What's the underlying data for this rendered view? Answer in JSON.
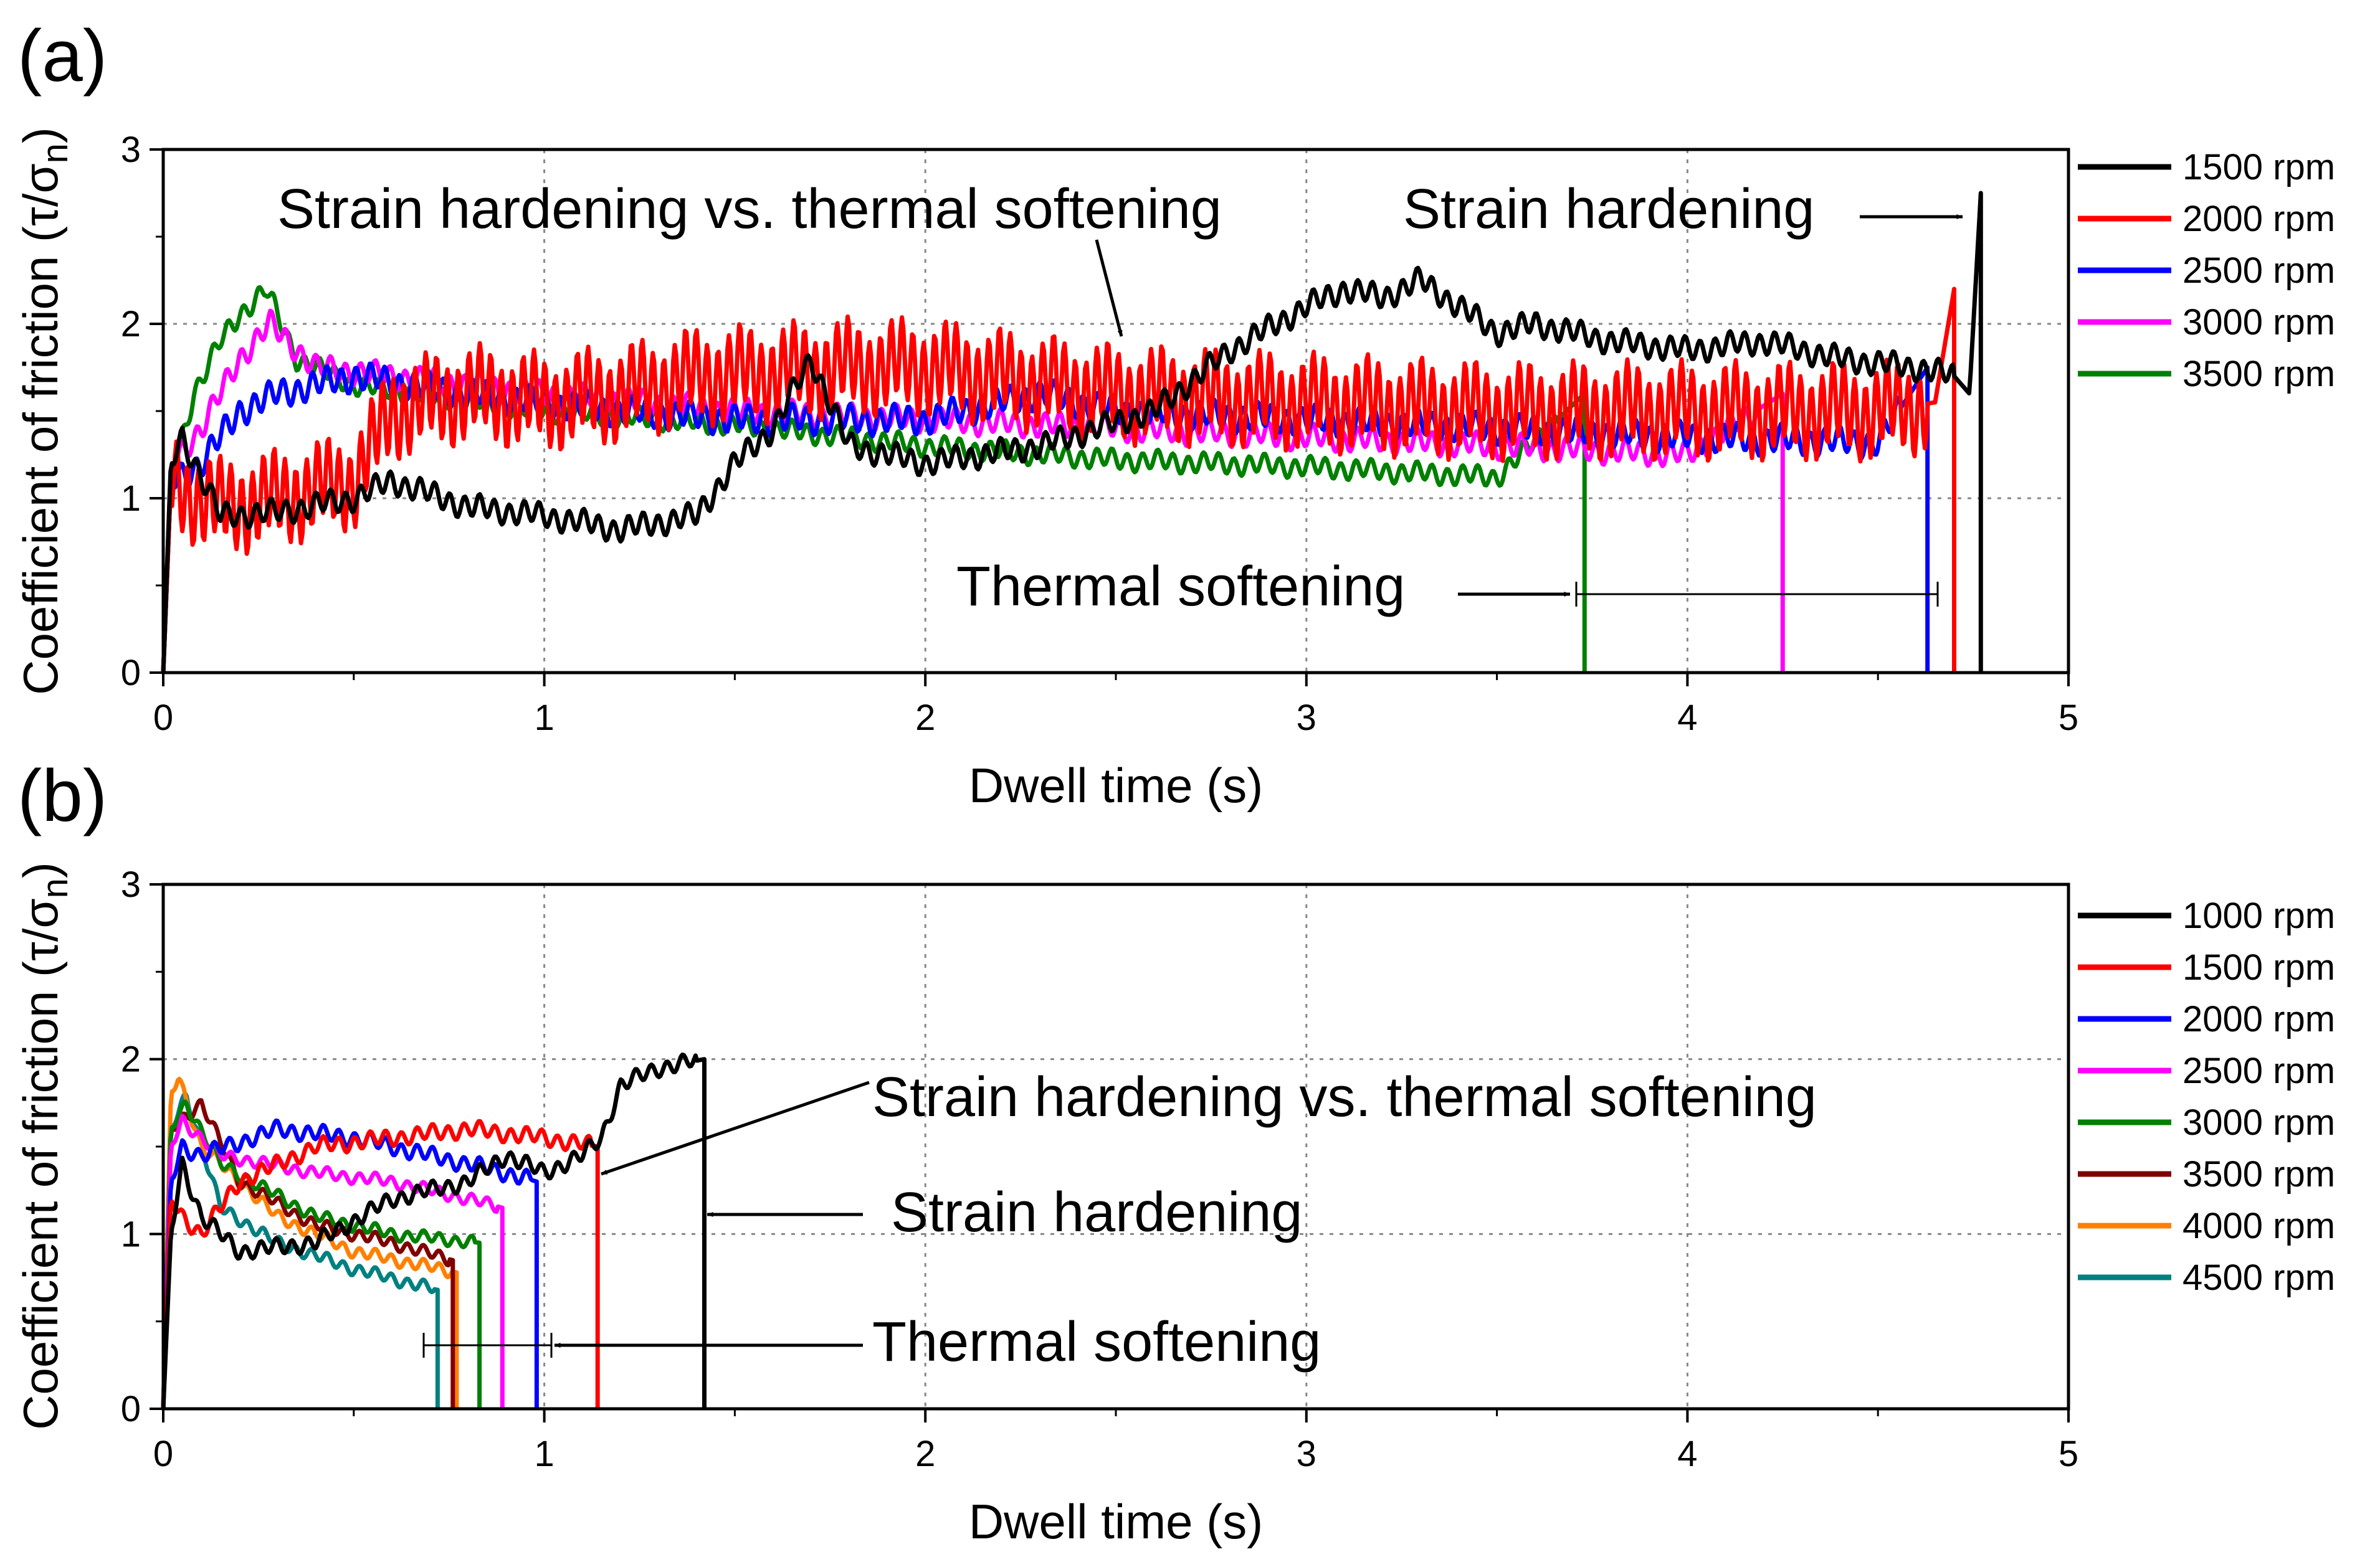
{
  "chart_data": [
    {
      "type": "line",
      "panel_label": "(a)",
      "xlabel": "Dwell time (s)",
      "ylabel": "Coefficient of friction (τ/σn)",
      "ylabel_parts": {
        "main": "Coefficient of friction (τ/σ",
        "sub": "n",
        "close": ")"
      },
      "xlim": [
        0,
        5
      ],
      "ylim": [
        0,
        3
      ],
      "xticks": [
        0,
        1,
        2,
        3,
        4,
        5
      ],
      "yticks": [
        0,
        1,
        2,
        3
      ],
      "grid": "dotted at y=1, y=2 and x=1, x=2, x=3, x=4",
      "legend_position": "right",
      "series": [
        {
          "name": "1500 rpm",
          "color": "#000000",
          "end_time": 4.77,
          "x": [
            0,
            0.02,
            0.05,
            0.15,
            0.3,
            0.5,
            0.6,
            0.8,
            1.0,
            1.2,
            1.4,
            1.5,
            1.6,
            1.7,
            1.8,
            2.0,
            2.3,
            2.6,
            2.8,
            3.0,
            3.1,
            3.2,
            3.3,
            3.4,
            3.5,
            3.6,
            3.8,
            4.0,
            4.2,
            4.4,
            4.6,
            4.7,
            4.74,
            4.77
          ],
          "y": [
            0.0,
            1.2,
            1.35,
            0.9,
            0.92,
            1.0,
            1.1,
            0.95,
            0.9,
            0.82,
            0.9,
            1.2,
            1.4,
            1.8,
            1.3,
            1.2,
            1.3,
            1.5,
            1.85,
            2.1,
            2.2,
            2.15,
            2.25,
            2.1,
            1.95,
            2.0,
            1.9,
            1.85,
            1.9,
            1.8,
            1.75,
            1.7,
            1.6,
            2.75
          ],
          "osc_amp": 0.06
        },
        {
          "name": "2000 rpm",
          "color": "#ff0000",
          "end_time": 4.7,
          "x": [
            0,
            0.02,
            0.05,
            0.15,
            0.3,
            0.5,
            0.6,
            0.8,
            1.0,
            1.2,
            1.4,
            1.6,
            1.8,
            2.0,
            2.5,
            3.0,
            3.5,
            4.0,
            4.5,
            4.65,
            4.7
          ],
          "y": [
            0.0,
            1.1,
            1.05,
            0.95,
            1.0,
            1.1,
            1.5,
            1.6,
            1.55,
            1.6,
            1.7,
            1.72,
            1.75,
            1.75,
            1.6,
            1.55,
            1.5,
            1.5,
            1.5,
            1.55,
            2.2
          ],
          "osc_amp": 0.22
        },
        {
          "name": "2500 rpm",
          "color": "#0000ff",
          "end_time": 4.63,
          "x": [
            0,
            0.02,
            0.1,
            0.2,
            0.3,
            0.5,
            0.8,
            1.0,
            1.2,
            1.5,
            2.0,
            2.3,
            2.5,
            3.0,
            3.5,
            4.0,
            4.5,
            4.63
          ],
          "y": [
            0.0,
            1.1,
            1.2,
            1.5,
            1.6,
            1.7,
            1.6,
            1.55,
            1.5,
            1.45,
            1.45,
            1.6,
            1.5,
            1.45,
            1.4,
            1.35,
            1.32,
            1.75
          ],
          "osc_amp": 0.07
        },
        {
          "name": "3000 rpm",
          "color": "#ff00ff",
          "end_time": 4.25,
          "x": [
            0,
            0.02,
            0.1,
            0.2,
            0.28,
            0.4,
            0.6,
            1.0,
            1.5,
            2.0,
            2.5,
            3.0,
            3.5,
            4.0,
            4.25
          ],
          "y": [
            0.0,
            1.2,
            1.4,
            1.8,
            2.0,
            1.75,
            1.7,
            1.6,
            1.5,
            1.45,
            1.4,
            1.35,
            1.3,
            1.25,
            1.6
          ],
          "osc_amp": 0.06
        },
        {
          "name": "3500 rpm",
          "color": "#008000",
          "end_time": 3.73,
          "x": [
            0,
            0.02,
            0.08,
            0.15,
            0.2,
            0.27,
            0.35,
            0.5,
            1.0,
            1.5,
            2.0,
            2.5,
            3.0,
            3.5,
            3.73
          ],
          "y": [
            0.0,
            1.1,
            1.6,
            1.9,
            2.05,
            2.2,
            1.8,
            1.65,
            1.5,
            1.42,
            1.3,
            1.22,
            1.18,
            1.12,
            1.6
          ],
          "osc_amp": 0.05
        }
      ],
      "annotations": [
        "Strain hardening vs. thermal softening",
        "Strain hardening",
        "Thermal softening"
      ]
    },
    {
      "type": "line",
      "panel_label": "(b)",
      "xlabel": "Dwell time  (s)",
      "ylabel": "Coefficient of friction (τ/σn)",
      "ylabel_parts": {
        "main": "Coefficient of friction (τ/σ",
        "sub": "n",
        "close": ")"
      },
      "xlim": [
        0,
        5
      ],
      "ylim": [
        0,
        3
      ],
      "xticks": [
        0,
        1,
        2,
        3,
        4,
        5
      ],
      "yticks": [
        0,
        1,
        2,
        3
      ],
      "grid": "dotted at y=1, y=2 and x=1, x=2, x=3, x=4",
      "legend_position": "right",
      "series": [
        {
          "name": "1000 rpm",
          "color": "#000000",
          "end_time": 1.42,
          "x": [
            0,
            0.02,
            0.05,
            0.1,
            0.2,
            0.4,
            0.6,
            0.8,
            0.9,
            1.0,
            1.1,
            1.15,
            1.2,
            1.3,
            1.42
          ],
          "y": [
            0.0,
            1.0,
            1.4,
            1.1,
            0.9,
            0.95,
            1.2,
            1.3,
            1.45,
            1.35,
            1.45,
            1.55,
            1.85,
            1.95,
            2.0
          ],
          "osc_amp": 0.04
        },
        {
          "name": "1500 rpm",
          "color": "#ff0000",
          "end_time": 1.14,
          "x": [
            0,
            0.02,
            0.05,
            0.1,
            0.2,
            0.4,
            0.6,
            0.8,
            1.0,
            1.14
          ],
          "y": [
            0.0,
            1.2,
            1.1,
            1.0,
            1.3,
            1.5,
            1.55,
            1.6,
            1.55,
            1.5
          ],
          "osc_amp": 0.04
        },
        {
          "name": "2000 rpm",
          "color": "#0000ff",
          "end_time": 0.98,
          "x": [
            0,
            0.02,
            0.05,
            0.1,
            0.3,
            0.5,
            0.7,
            0.9,
            0.98
          ],
          "y": [
            0.0,
            1.3,
            1.5,
            1.45,
            1.6,
            1.55,
            1.45,
            1.35,
            1.3
          ],
          "osc_amp": 0.04
        },
        {
          "name": "2500 rpm",
          "color": "#ff00ff",
          "end_time": 0.89,
          "x": [
            0,
            0.02,
            0.05,
            0.15,
            0.4,
            0.6,
            0.8,
            0.89
          ],
          "y": [
            0.0,
            1.5,
            1.65,
            1.45,
            1.35,
            1.3,
            1.2,
            1.15
          ],
          "osc_amp": 0.03
        },
        {
          "name": "3000 rpm",
          "color": "#008000",
          "end_time": 0.83,
          "x": [
            0,
            0.02,
            0.06,
            0.15,
            0.4,
            0.6,
            0.83
          ],
          "y": [
            0.0,
            1.6,
            1.75,
            1.4,
            1.1,
            1.0,
            0.95
          ],
          "osc_amp": 0.03
        },
        {
          "name": "3500 rpm",
          "color": "#800000",
          "end_time": 0.76,
          "x": [
            0,
            0.02,
            0.1,
            0.2,
            0.4,
            0.6,
            0.76
          ],
          "y": [
            0.0,
            1.6,
            1.75,
            1.3,
            1.05,
            0.95,
            0.85
          ],
          "osc_amp": 0.03
        },
        {
          "name": "4000 rpm",
          "color": "#ff8000",
          "end_time": 0.77,
          "x": [
            0,
            0.02,
            0.04,
            0.1,
            0.3,
            0.5,
            0.77
          ],
          "y": [
            0.0,
            1.8,
            1.9,
            1.5,
            1.1,
            0.9,
            0.78
          ],
          "osc_amp": 0.03
        },
        {
          "name": "4500 rpm",
          "color": "#008080",
          "end_time": 0.72,
          "x": [
            0,
            0.02,
            0.06,
            0.15,
            0.3,
            0.5,
            0.72
          ],
          "y": [
            0.0,
            1.6,
            1.8,
            1.15,
            0.95,
            0.8,
            0.68
          ],
          "osc_amp": 0.03
        }
      ],
      "annotations": [
        "Strain hardening vs. thermal softening",
        "Strain hardening",
        "Thermal softening"
      ]
    }
  ]
}
